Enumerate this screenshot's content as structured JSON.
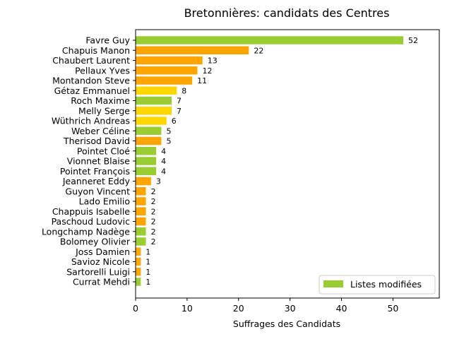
{
  "chart_data": {
    "type": "bar",
    "orientation": "horizontal",
    "title": "Bretonnières: candidats des Centres",
    "xlabel": "Suffrages des Candidats",
    "ylabel": "",
    "xlim": [
      0,
      59
    ],
    "xticks": [
      0,
      10,
      20,
      30,
      40,
      50
    ],
    "grid": false,
    "legend": {
      "position": "lower-right",
      "entries": [
        {
          "label": "Listes modifiées",
          "color": "#9acd32"
        }
      ]
    },
    "colors": {
      "green": "#9acd32",
      "orange": "#ffa500",
      "gold": "#ffd700"
    },
    "bars": [
      {
        "name": "Favre Guy",
        "value": 52,
        "color": "green"
      },
      {
        "name": "Chapuis Manon",
        "value": 22,
        "color": "orange"
      },
      {
        "name": "Chaubert Laurent",
        "value": 13,
        "color": "orange"
      },
      {
        "name": "Pellaux Yves",
        "value": 12,
        "color": "orange"
      },
      {
        "name": "Montandon Steve",
        "value": 11,
        "color": "orange"
      },
      {
        "name": "Gétaz Emmanuel",
        "value": 8,
        "color": "gold"
      },
      {
        "name": "Roch Maxime",
        "value": 7,
        "color": "green"
      },
      {
        "name": "Melly Serge",
        "value": 7,
        "color": "gold"
      },
      {
        "name": "Wüthrich Andreas",
        "value": 6,
        "color": "gold"
      },
      {
        "name": "Weber Céline",
        "value": 5,
        "color": "green"
      },
      {
        "name": "Therisod David",
        "value": 5,
        "color": "orange"
      },
      {
        "name": "Pointet Cloé",
        "value": 4,
        "color": "green"
      },
      {
        "name": "Vionnet Blaise",
        "value": 4,
        "color": "green"
      },
      {
        "name": "Pointet François",
        "value": 4,
        "color": "green"
      },
      {
        "name": "Jeanneret Eddy",
        "value": 3,
        "color": "orange"
      },
      {
        "name": "Guyon Vincent",
        "value": 2,
        "color": "orange"
      },
      {
        "name": "Lado Emilio",
        "value": 2,
        "color": "orange"
      },
      {
        "name": "Chappuis Isabelle",
        "value": 2,
        "color": "orange"
      },
      {
        "name": "Paschoud Ludovic",
        "value": 2,
        "color": "orange"
      },
      {
        "name": "Longchamp Nadège",
        "value": 2,
        "color": "green"
      },
      {
        "name": "Bolomey Olivier",
        "value": 2,
        "color": "green"
      },
      {
        "name": "Joss Damien",
        "value": 1,
        "color": "orange"
      },
      {
        "name": "Savioz Nicole",
        "value": 1,
        "color": "orange"
      },
      {
        "name": "Sartorelli Luigi",
        "value": 1,
        "color": "orange"
      },
      {
        "name": "Currat Mehdi",
        "value": 1,
        "color": "green"
      }
    ]
  }
}
